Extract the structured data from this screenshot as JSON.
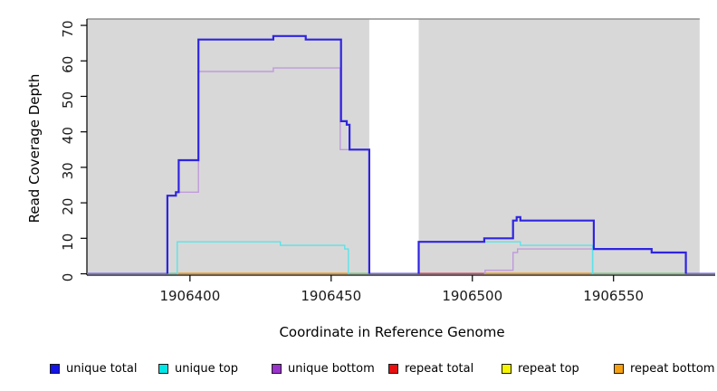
{
  "chart_data": {
    "type": "line",
    "subtype": "coverage-step-plot",
    "title": "",
    "xlabel": "Coordinate in Reference Genome",
    "ylabel": "Read Coverage Depth",
    "xlim": [
      1906363.5,
      1906586
    ],
    "ylim": [
      0,
      71.8
    ],
    "xticks": [
      1906400,
      1906450,
      1906500,
      1906550
    ],
    "yticks": [
      0,
      10,
      20,
      30,
      40,
      50,
      60,
      70
    ],
    "grid": false,
    "legend_position": "bottom",
    "plot_bg": "#ffffff",
    "repeat_region_color": "#d8d8d8",
    "repeat_region_top_edge": "#8f8f8f",
    "repeat_regions": [
      {
        "start": 1906363.5,
        "end": 1906463.5
      },
      {
        "start": 1906481.0,
        "end": 1906580.5
      }
    ],
    "series": [
      {
        "name": "unique bottom",
        "color": "#c09adc",
        "width": 1.4,
        "segments": [
          {
            "pts": [
              [
                1906392,
                22
              ],
              [
                1906395,
                23
              ],
              [
                1906403,
                57
              ],
              [
                1906429.5,
                58
              ],
              [
                1906453.2,
                35
              ]
            ],
            "end": 1906463.5
          },
          {
            "pts": [
              [
                1906504.5,
                1
              ],
              [
                1906514.4,
                6
              ],
              [
                1906516,
                7
              ]
            ],
            "end": 1906542.6
          }
        ]
      },
      {
        "name": "unique top",
        "color": "#5ce3e8",
        "width": 1.4,
        "segments": [
          {
            "pts": [
              [
                1906395.5,
                9
              ],
              [
                1906432,
                8
              ],
              [
                1906454.8,
                7
              ]
            ],
            "end": 1906456.1
          },
          {
            "pts": [
              [
                1906481,
                9
              ],
              [
                1906517,
                8
              ]
            ],
            "end": 1906542.6
          }
        ]
      },
      {
        "name": "unique total",
        "color": "#2f24e0",
        "width": 2.2,
        "segments": [
          {
            "pts": [
              [
                1906392,
                22
              ],
              [
                1906395,
                23
              ],
              [
                1906396,
                32
              ],
              [
                1906403,
                66
              ],
              [
                1906429.5,
                67
              ],
              [
                1906441,
                66
              ],
              [
                1906453.5,
                43
              ],
              [
                1906455.5,
                42
              ],
              [
                1906456.5,
                35
              ]
            ],
            "end": 1906463.5
          },
          {
            "pts": [
              [
                1906481,
                9
              ],
              [
                1906504.2,
                10
              ],
              [
                1906514.4,
                15
              ],
              [
                1906515.7,
                16
              ],
              [
                1906517,
                15
              ],
              [
                1906543,
                7
              ],
              [
                1906563.5,
                6
              ]
            ],
            "end": 1906575.6
          }
        ]
      }
    ],
    "baseline_segments": [
      {
        "start": 1906363.5,
        "end": 1906392,
        "color": "#7d6fe8"
      },
      {
        "start": 1906392,
        "end": 1906395.8,
        "color": "#64c9a8"
      },
      {
        "start": 1906395.8,
        "end": 1906456.1,
        "color": "#f59300"
      },
      {
        "start": 1906456.1,
        "end": 1906463.5,
        "color": "#79c77e"
      },
      {
        "start": 1906463.5,
        "end": 1906481,
        "color": "#7d6fe8"
      },
      {
        "start": 1906481,
        "end": 1906504.2,
        "color": "#d84a63"
      },
      {
        "start": 1906504.2,
        "end": 1906541.9,
        "color": "#f59300"
      },
      {
        "start": 1906541.9,
        "end": 1906575.6,
        "color": "#79c77e"
      },
      {
        "start": 1906575.6,
        "end": 1906586,
        "color": "#7d6fe8"
      }
    ]
  },
  "axes": {
    "x_label": "Coordinate in Reference Genome",
    "y_label": "Read Coverage Depth",
    "axis_color": "#000000",
    "tick_label_color": "#1a1a1a"
  },
  "legend": {
    "items": [
      {
        "label": "unique total",
        "color": "#1414e8"
      },
      {
        "label": "unique top",
        "color": "#00e5e5"
      },
      {
        "label": "unique bottom",
        "color": "#9933cc"
      },
      {
        "label": "repeat total",
        "color": "#e81010"
      },
      {
        "label": "repeat top",
        "color": "#f5f500"
      },
      {
        "label": "repeat bottom",
        "color": "#f5a011"
      }
    ]
  }
}
